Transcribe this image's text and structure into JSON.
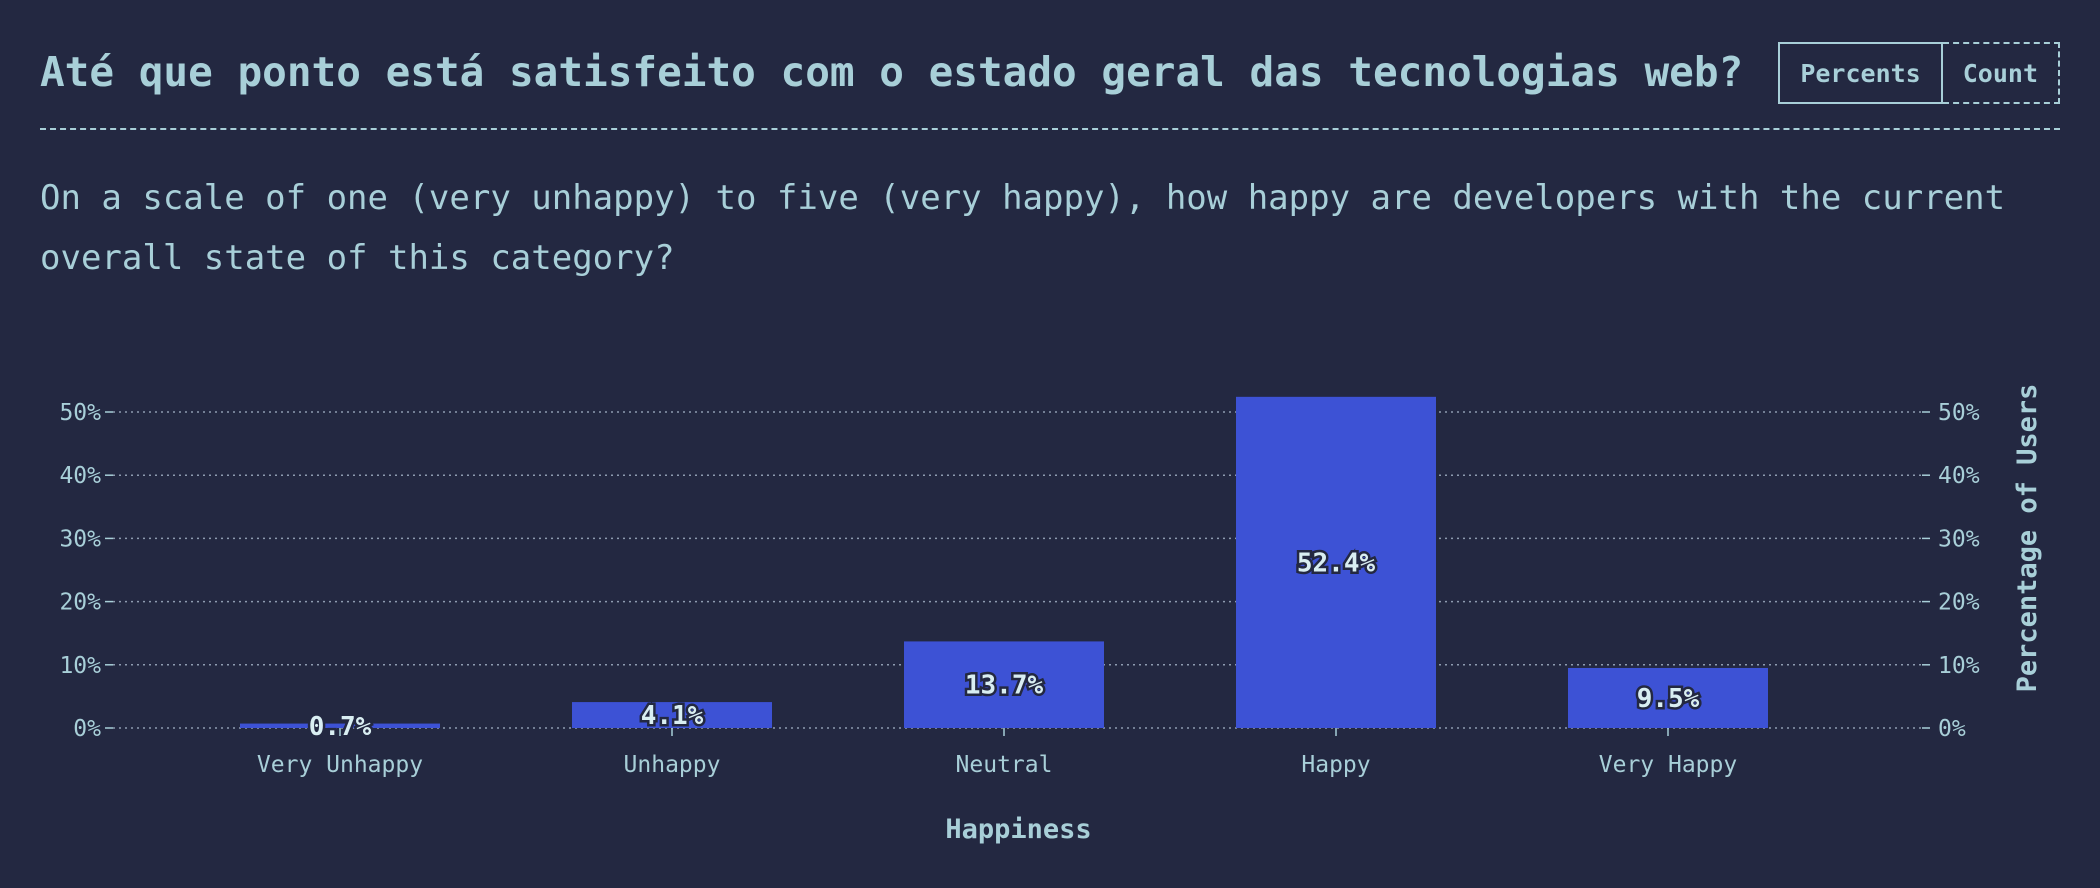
{
  "header": {
    "title": "Até que ponto está satisfeito com o estado geral das tecnologias web?",
    "toggle": {
      "percents_label": "Percents",
      "count_label": "Count",
      "active": "percents"
    }
  },
  "description": "On a scale of one (very unhappy) to five (very happy), how happy are developers with the current overall state of this category?",
  "colors": {
    "background": "#232841",
    "bar": "#3d52d5",
    "text": "#a8cfd8"
  },
  "chart_data": {
    "type": "bar",
    "categories": [
      "Very Unhappy",
      "Unhappy",
      "Neutral",
      "Happy",
      "Very Happy"
    ],
    "values": [
      0.7,
      4.1,
      13.7,
      52.4,
      9.5
    ],
    "value_labels": [
      "0.7%",
      "4.1%",
      "13.7%",
      "52.4%",
      "9.5%"
    ],
    "xlabel": "Happiness",
    "ylabel": "Percentage of Users",
    "ylim": [
      0,
      50
    ],
    "yticks": [
      0,
      10,
      20,
      30,
      40,
      50
    ],
    "ytick_labels": [
      "0%",
      "10%",
      "20%",
      "30%",
      "40%",
      "50%"
    ],
    "grid": true,
    "y_axis_both_sides": true
  }
}
